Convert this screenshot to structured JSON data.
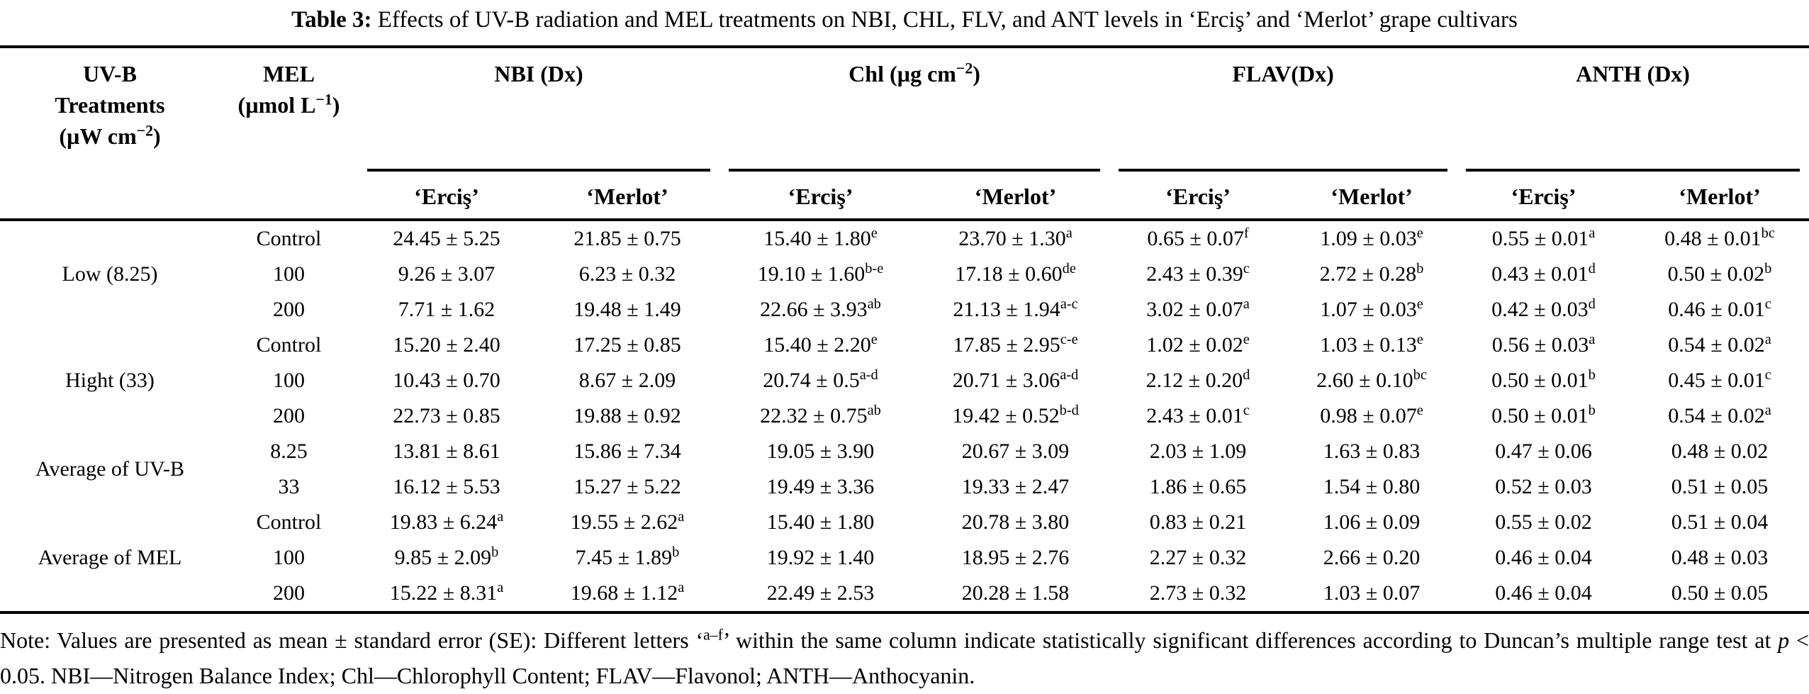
{
  "title": {
    "prefix": "Table 3:",
    "text": "Effects of UV-B radiation and MEL treatments on NBI, CHL, FLV, and ANT levels in ‘Erciş’ and ‘Merlot’ grape cultivars"
  },
  "table": {
    "col_headers": {
      "uvb_lines": [
        "UV-B",
        "Treatments",
        "(µW cm^{−2})"
      ],
      "mel_lines": [
        "MEL",
        "(µmol L^{−1})"
      ],
      "groups": [
        "NBI (Dx)",
        "Chl (µg cm^{−2})",
        "FLAV(Dx)",
        "ANTH (Dx)"
      ],
      "cultivars": [
        "‘Erciş’",
        "‘Merlot’"
      ]
    },
    "row_groups": [
      {
        "label": "Low (8.25)",
        "rows": [
          {
            "mel": "Control",
            "values": [
              "24.45 ± 5.25",
              "21.85 ± 0.75",
              "15.40 ± 1.80^{e}",
              "23.70 ± 1.30^{a}",
              "0.65 ± 0.07^{f}",
              "1.09 ± 0.03^{e}",
              "0.55 ± 0.01^{a}",
              "0.48 ± 0.01^{bc}"
            ]
          },
          {
            "mel": "100",
            "values": [
              "9.26 ± 3.07",
              "6.23 ± 0.32",
              "19.10 ± 1.60^{b-e}",
              "17.18 ± 0.60^{de}",
              "2.43 ± 0.39^{c}",
              "2.72 ± 0.28^{b}",
              "0.43 ± 0.01^{d}",
              "0.50 ± 0.02^{b}"
            ]
          },
          {
            "mel": "200",
            "values": [
              "7.71 ± 1.62",
              "19.48 ± 1.49",
              "22.66 ± 3.93^{ab}",
              "21.13 ± 1.94^{a-c}",
              "3.02 ± 0.07^{a}",
              "1.07 ± 0.03^{e}",
              "0.42 ± 0.03^{d}",
              "0.46 ± 0.01^{c}"
            ]
          }
        ]
      },
      {
        "label": "Hight (33)",
        "rows": [
          {
            "mel": "Control",
            "values": [
              "15.20 ± 2.40",
              "17.25 ± 0.85",
              "15.40 ± 2.20^{e}",
              "17.85 ± 2.95^{c-e}",
              "1.02 ± 0.02^{e}",
              "1.03 ± 0.13^{e}",
              "0.56 ± 0.03^{a}",
              "0.54 ± 0.02^{a}"
            ]
          },
          {
            "mel": "100",
            "values": [
              "10.43 ± 0.70",
              "8.67 ± 2.09",
              "20.74 ± 0.5^{a-d}",
              "20.71 ± 3.06^{a-d}",
              "2.12 ± 0.20^{d}",
              "2.60 ± 0.10^{bc}",
              "0.50 ± 0.01^{b}",
              "0.45 ± 0.01^{c}"
            ]
          },
          {
            "mel": "200",
            "values": [
              "22.73 ± 0.85",
              "19.88 ± 0.92",
              "22.32 ± 0.75^{ab}",
              "19.42 ± 0.52^{b-d}",
              "2.43 ± 0.01^{c}",
              "0.98 ± 0.07^{e}",
              "0.50 ± 0.01^{b}",
              "0.54 ± 0.02^{a}"
            ]
          }
        ]
      },
      {
        "label": "Average of UV-B",
        "rows": [
          {
            "mel": "8.25",
            "values": [
              "13.81 ± 8.61",
              "15.86 ± 7.34",
              "19.05 ± 3.90",
              "20.67 ± 3.09",
              "2.03 ± 1.09",
              "1.63 ± 0.83",
              "0.47 ± 0.06",
              "0.48 ± 0.02"
            ]
          },
          {
            "mel": "33",
            "values": [
              "16.12 ± 5.53",
              "15.27 ± 5.22",
              "19.49 ± 3.36",
              "19.33 ± 2.47",
              "1.86 ± 0.65",
              "1.54 ± 0.80",
              "0.52 ± 0.03",
              "0.51 ± 0.05"
            ]
          }
        ]
      },
      {
        "label": "Average of MEL",
        "rows": [
          {
            "mel": "Control",
            "values": [
              "19.83 ± 6.24^{a}",
              "19.55 ± 2.62^{a}",
              "15.40 ± 1.80",
              "20.78 ± 3.80",
              "0.83 ± 0.21",
              "1.06 ± 0.09",
              "0.55 ± 0.02",
              "0.51 ± 0.04"
            ]
          },
          {
            "mel": "100",
            "values": [
              "9.85 ± 2.09^{b}",
              "7.45 ± 1.89^{b}",
              "19.92 ± 1.40",
              "18.95 ± 2.76",
              "2.27 ± 0.32",
              "2.66 ± 0.20",
              "0.46 ± 0.04",
              "0.48 ± 0.03"
            ]
          },
          {
            "mel": "200",
            "values": [
              "15.22 ± 8.31^{a}",
              "19.68 ± 1.12^{a}",
              "22.49 ± 2.53",
              "20.28 ± 1.58",
              "2.73 ± 0.32",
              "1.03 ± 0.07",
              "0.46 ± 0.04",
              "0.50 ± 0.05"
            ]
          }
        ]
      }
    ],
    "note": "Note: Values are presented as mean ± standard error (SE): Different letters ‘^{a–f}’ within the same column indicate statistically significant differences according to Duncan’s multiple range test at ~{p} < 0.05. NBI—Nitrogen Balance Index; Chl—Chlorophyll Content; FLAV—Flavonol; ANTH—Anthocyanin."
  }
}
